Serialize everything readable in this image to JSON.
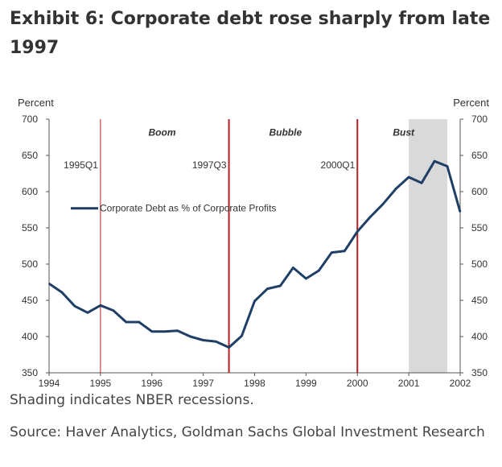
{
  "title": "Exhibit 6: Corporate debt rose sharply from late 1997",
  "note": "Shading indicates NBER recessions.",
  "source": "Source: Haver Analytics, Goldman Sachs Global Investment Research",
  "colors": {
    "line": "#1f3f66",
    "marker": "#b22222",
    "recession": "#d9d9d9",
    "axis": "#555555",
    "text": "#333333"
  },
  "chart_data": {
    "type": "line",
    "title": "",
    "ylabel_left": "Percent",
    "ylabel_right": "Percent",
    "ylim": [
      350,
      700
    ],
    "yticks": [
      350,
      400,
      450,
      500,
      550,
      600,
      650,
      700
    ],
    "xlim": [
      1994,
      2002
    ],
    "xticks": [
      "1994",
      "1995",
      "1996",
      "1997",
      "1998",
      "1999",
      "2000",
      "2001",
      "2002"
    ],
    "grid": false,
    "legend": "left, upper middle",
    "series": [
      {
        "name": "Corporate Debt as % of Corporate Profits",
        "x": [
          1994.0,
          1994.25,
          1994.5,
          1994.75,
          1995.0,
          1995.25,
          1995.5,
          1995.75,
          1996.0,
          1996.25,
          1996.5,
          1996.75,
          1997.0,
          1997.25,
          1997.5,
          1997.75,
          1998.0,
          1998.25,
          1998.5,
          1998.75,
          1999.0,
          1999.25,
          1999.5,
          1999.75,
          2000.0,
          2000.25,
          2000.5,
          2000.75,
          2001.0,
          2001.25,
          2001.5,
          2001.75,
          2002.0
        ],
        "y": [
          473,
          461,
          442,
          433,
          443,
          436,
          420,
          420,
          407,
          407,
          408,
          400,
          395,
          393,
          385,
          401,
          449,
          466,
          470,
          495,
          480,
          491,
          516,
          518,
          545,
          565,
          583,
          604,
          620,
          612,
          642,
          635,
          572
        ]
      }
    ],
    "recession_shading": [
      {
        "from": 2001.0,
        "to": 2001.75
      }
    ],
    "markers": [
      {
        "x": 1995.0,
        "label": "1995Q1",
        "phase": "Boom"
      },
      {
        "x": 1997.5,
        "label": "1997Q3",
        "phase": "Bubble"
      },
      {
        "x": 2000.0,
        "label": "2000Q1",
        "phase": "Bust"
      }
    ]
  }
}
